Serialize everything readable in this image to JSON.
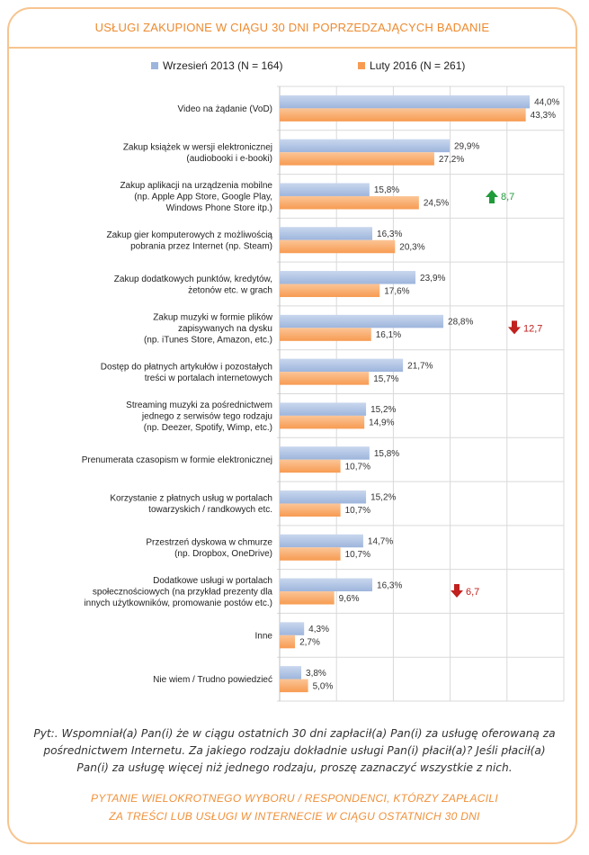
{
  "title": "USŁUGI ZAKUPIONE W CIĄGU 30 DNI POPRZEDZAJĄCYCH BADANIE",
  "colors": {
    "series1": "#9db5dc",
    "series2": "#f79b52",
    "up": "#1f9b3a",
    "down": "#c0201e",
    "frame": "#f7c48f",
    "title": "#ee8a2f"
  },
  "chart_data": {
    "type": "bar",
    "orientation": "horizontal",
    "title": "USŁUGI ZAKUPIONE W CIĄGU 30 DNI POPRZEDZAJĄCYCH BADANIE",
    "xlim": [
      0,
      50
    ],
    "grid": true,
    "legend_position": "top",
    "series": [
      {
        "name": "Wrzesień 2013 (N = 164)",
        "values": [
          44.0,
          29.9,
          15.8,
          16.3,
          23.9,
          28.8,
          21.7,
          15.2,
          15.8,
          15.2,
          14.7,
          16.3,
          4.3,
          3.8
        ],
        "labels": [
          "44,0%",
          "29,9%",
          "15,8%",
          "16,3%",
          "23,9%",
          "28,8%",
          "21,7%",
          "15,2%",
          "15,8%",
          "15,2%",
          "14,7%",
          "16,3%",
          "4,3%",
          "3,8%"
        ]
      },
      {
        "name": "Luty 2016 (N = 261)",
        "values": [
          43.3,
          27.2,
          24.5,
          20.3,
          17.6,
          16.1,
          15.7,
          14.9,
          10.7,
          10.7,
          10.7,
          9.6,
          2.7,
          5.0
        ],
        "labels": [
          "43,3%",
          "27,2%",
          "24,5%",
          "20,3%",
          "17,6%",
          "16,1%",
          "15,7%",
          "14,9%",
          "10,7%",
          "10,7%",
          "10,7%",
          "9,6%",
          "2,7%",
          "5,0%"
        ]
      }
    ],
    "categories": [
      [
        "Video na żądanie (VoD)"
      ],
      [
        "Zakup książek w wersji elektronicznej",
        "(audiobooki i e-booki)"
      ],
      [
        "Zakup aplikacji na urządzenia mobilne",
        "(np. Apple App Store, Google Play,",
        "Windows Phone Store itp.)"
      ],
      [
        "Zakup gier komputerowych z możliwością",
        "pobrania przez Internet (np. Steam)"
      ],
      [
        "Zakup dodatkowych punktów, kredytów,",
        "żetonów etc. w grach"
      ],
      [
        "Zakup muzyki w formie plików",
        "zapisywanych na dysku",
        "(np. iTunes Store, Amazon, etc.)"
      ],
      [
        "Dostęp do płatnych artykułów i pozostałych",
        "treści w portalach internetowych"
      ],
      [
        "Streaming muzyki za pośrednictwem",
        "jednego z serwisów tego rodzaju",
        "(np. Deezer, Spotify, Wimp, etc.)"
      ],
      [
        "Prenumerata czasopism w formie elektronicznej"
      ],
      [
        "Korzystanie z płatnych usług w portalach",
        "towarzyskich / randkowych etc."
      ],
      [
        "Przestrzeń dyskowa w chmurze",
        "(np. Dropbox, OneDrive)"
      ],
      [
        "Dodatkowe usługi w portalach",
        "społecznościowych (na przykład prezenty dla",
        "innych użytkowników, promowanie postów etc.)"
      ],
      [
        "Inne"
      ],
      [
        "Nie wiem / Trudno powiedzieć"
      ]
    ],
    "annotations": [
      {
        "category_index": 2,
        "direction": "up",
        "text": "8,7"
      },
      {
        "category_index": 5,
        "direction": "down",
        "text": "12,7"
      },
      {
        "category_index": 11,
        "direction": "down",
        "text": "6,7"
      }
    ]
  },
  "footer": {
    "question": "Pyt:. Wspomniał(a) Pan(i) że w ciągu ostatnich 30 dni zapłacił(a) Pan(i) za usługę oferowaną za pośrednictwem Internetu. Za jakiego rodzaju dokładnie usługi Pan(i) płacił(a)? Jeśli płacił(a) Pan(i) za usługę więcej niż jednego rodzaju, proszę zaznaczyć wszystkie z nich.",
    "note_line1": "PYTANIE WIELOKROTNEGO WYBORU / RESPONDENCI, KTÓRZY ZAPŁACILI",
    "note_line2": "ZA TREŚCI LUB USŁUGI W INTERNECIE W CIĄGU OSTATNICH 30 DNI"
  }
}
